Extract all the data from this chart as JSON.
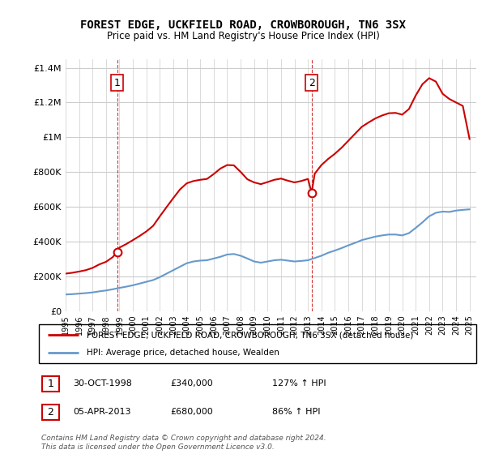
{
  "title": "FOREST EDGE, UCKFIELD ROAD, CROWBOROUGH, TN6 3SX",
  "subtitle": "Price paid vs. HM Land Registry's House Price Index (HPI)",
  "legend_line1": "FOREST EDGE, UCKFIELD ROAD, CROWBOROUGH, TN6 3SX (detached house)",
  "legend_line2": "HPI: Average price, detached house, Wealden",
  "sale1_label": "1",
  "sale1_date": "30-OCT-1998",
  "sale1_price": "£340,000",
  "sale1_hpi": "127% ↑ HPI",
  "sale2_label": "2",
  "sale2_date": "05-APR-2013",
  "sale2_price": "£680,000",
  "sale2_hpi": "86% ↑ HPI",
  "footer": "Contains HM Land Registry data © Crown copyright and database right 2024.\nThis data is licensed under the Open Government Licence v3.0.",
  "red_color": "#cc0000",
  "blue_color": "#6699cc",
  "vline_color": "#cc0000",
  "grid_color": "#cccccc",
  "ylim": [
    0,
    1450000
  ],
  "xlim_start": 1995.0,
  "xlim_end": 2025.5,
  "sale1_x": 1998.83,
  "sale1_y": 340000,
  "sale2_x": 2013.27,
  "sale2_y": 680000,
  "hpi_years": [
    1995,
    1995.5,
    1996,
    1996.5,
    1997,
    1997.5,
    1998,
    1998.5,
    1999,
    1999.5,
    2000,
    2000.5,
    2001,
    2001.5,
    2002,
    2002.5,
    2003,
    2003.5,
    2004,
    2004.5,
    2005,
    2005.5,
    2006,
    2006.5,
    2007,
    2007.5,
    2008,
    2008.5,
    2009,
    2009.5,
    2010,
    2010.5,
    2011,
    2011.5,
    2012,
    2012.5,
    2013,
    2013.5,
    2014,
    2014.5,
    2015,
    2015.5,
    2016,
    2016.5,
    2017,
    2017.5,
    2018,
    2018.5,
    2019,
    2019.5,
    2020,
    2020.5,
    2021,
    2021.5,
    2022,
    2022.5,
    2023,
    2023.5,
    2024,
    2024.5,
    2025
  ],
  "hpi_values": [
    95000,
    97000,
    100000,
    103000,
    107000,
    113000,
    118000,
    125000,
    133000,
    140000,
    148000,
    158000,
    168000,
    178000,
    195000,
    215000,
    235000,
    255000,
    275000,
    285000,
    290000,
    292000,
    302000,
    312000,
    325000,
    328000,
    318000,
    302000,
    285000,
    278000,
    285000,
    292000,
    295000,
    290000,
    285000,
    288000,
    292000,
    305000,
    318000,
    335000,
    348000,
    362000,
    378000,
    392000,
    408000,
    418000,
    428000,
    435000,
    440000,
    440000,
    435000,
    448000,
    478000,
    510000,
    545000,
    565000,
    572000,
    570000,
    578000,
    582000,
    585000
  ],
  "red_years": [
    1995,
    1995.5,
    1996,
    1996.5,
    1997,
    1997.5,
    1998,
    1998.5,
    1998.83,
    1999,
    1999.5,
    2000,
    2000.5,
    2001,
    2001.5,
    2002,
    2002.5,
    2003,
    2003.5,
    2004,
    2004.5,
    2005,
    2005.5,
    2006,
    2006.5,
    2007,
    2007.5,
    2008,
    2008.5,
    2009,
    2009.5,
    2010,
    2010.5,
    2011,
    2011.5,
    2012,
    2012.5,
    2013,
    2013.27,
    2013.5,
    2014,
    2014.5,
    2015,
    2015.5,
    2016,
    2016.5,
    2017,
    2017.5,
    2018,
    2018.5,
    2019,
    2019.5,
    2020,
    2020.5,
    2021,
    2021.5,
    2022,
    2022.5,
    2023,
    2023.5,
    2024,
    2024.5,
    2025
  ],
  "red_values": [
    215000,
    220000,
    227000,
    235000,
    248000,
    268000,
    283000,
    310000,
    340000,
    365000,
    385000,
    408000,
    432000,
    458000,
    490000,
    545000,
    598000,
    650000,
    700000,
    735000,
    748000,
    755000,
    760000,
    788000,
    820000,
    840000,
    838000,
    800000,
    758000,
    740000,
    730000,
    742000,
    755000,
    762000,
    750000,
    740000,
    748000,
    760000,
    680000,
    790000,
    840000,
    875000,
    905000,
    940000,
    980000,
    1020000,
    1060000,
    1085000,
    1108000,
    1125000,
    1138000,
    1140000,
    1130000,
    1162000,
    1240000,
    1305000,
    1340000,
    1320000,
    1250000,
    1220000,
    1200000,
    1180000,
    990000
  ]
}
